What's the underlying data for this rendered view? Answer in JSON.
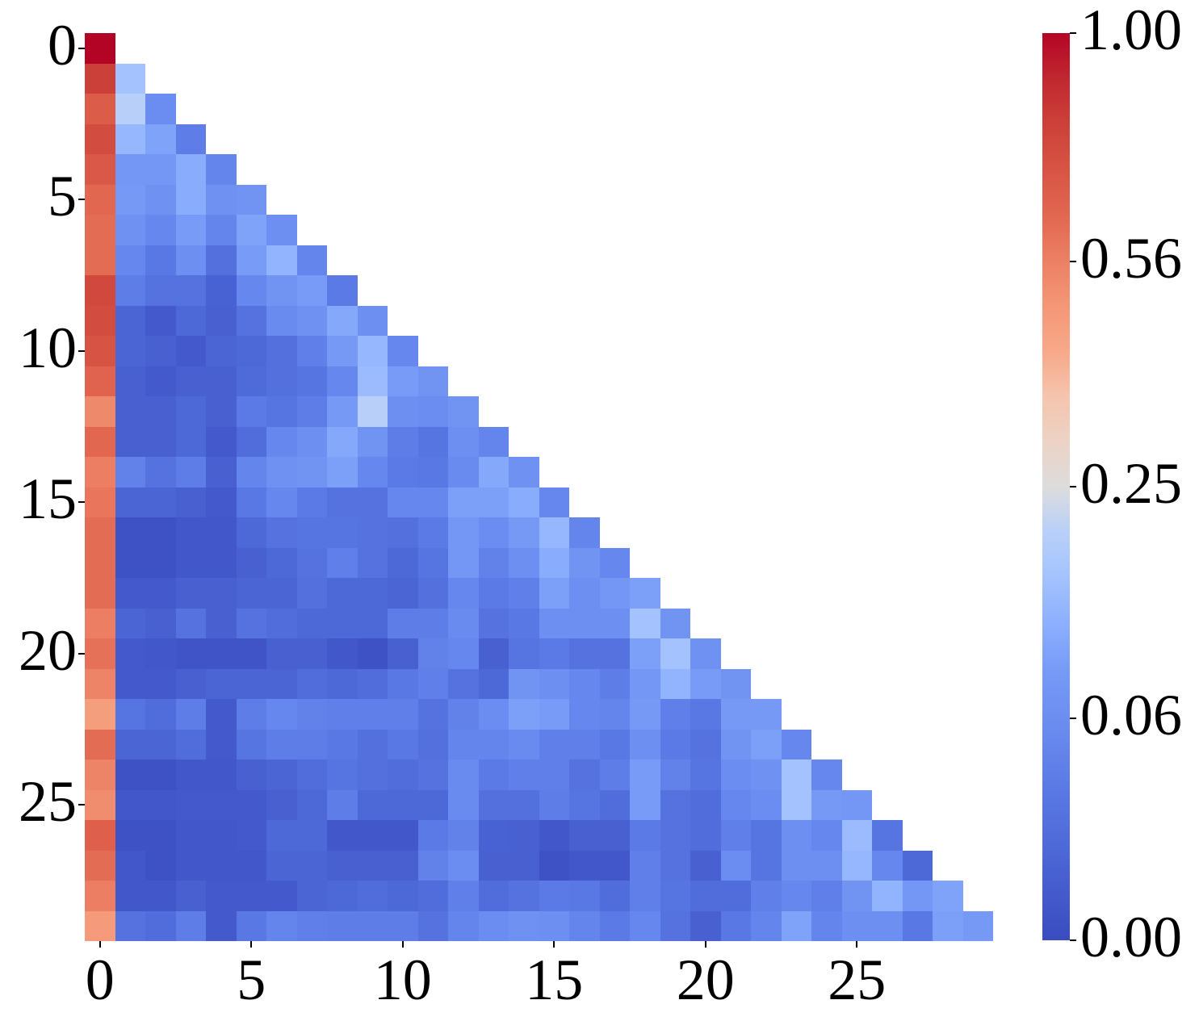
{
  "chart_data": {
    "type": "heatmap",
    "title": "",
    "xlabel": "",
    "ylabel": "",
    "mask": "upper-triangle (lower-triangular matrix, row i has columns 0..i)",
    "colormap": "coolwarm",
    "norm": "power (gamma=2): colormap position = sqrt(value)",
    "n_rows": 30,
    "n_cols": 30,
    "x_ticks": [
      0,
      5,
      10,
      15,
      20,
      25
    ],
    "y_ticks": [
      0,
      5,
      10,
      15,
      20,
      25
    ],
    "x_tick_labels": [
      "0",
      "5",
      "10",
      "15",
      "20",
      "25"
    ],
    "y_tick_labels": [
      "0",
      "5",
      "10",
      "15",
      "20",
      "25"
    ],
    "colorbar": {
      "range": [
        0.0,
        1.0
      ],
      "ticks": [
        1.0,
        0.56,
        0.25,
        0.06,
        0.0
      ],
      "tick_labels": [
        "1.00",
        "0.56",
        "0.25",
        "0.06",
        "0.00"
      ]
    },
    "values_sqrt_position": [
      [
        1.0
      ],
      [
        0.9,
        0.4
      ],
      [
        0.83,
        0.45,
        0.24
      ],
      [
        0.87,
        0.37,
        0.32,
        0.18
      ],
      [
        0.84,
        0.28,
        0.28,
        0.34,
        0.21
      ],
      [
        0.8,
        0.29,
        0.26,
        0.34,
        0.26,
        0.27
      ],
      [
        0.79,
        0.26,
        0.22,
        0.3,
        0.21,
        0.32,
        0.25
      ],
      [
        0.79,
        0.22,
        0.16,
        0.25,
        0.13,
        0.3,
        0.36,
        0.21
      ],
      [
        0.88,
        0.18,
        0.14,
        0.14,
        0.08,
        0.22,
        0.27,
        0.3,
        0.17
      ],
      [
        0.87,
        0.09,
        0.05,
        0.1,
        0.07,
        0.14,
        0.23,
        0.26,
        0.33,
        0.25
      ],
      [
        0.85,
        0.09,
        0.07,
        0.05,
        0.09,
        0.1,
        0.13,
        0.19,
        0.29,
        0.37,
        0.22
      ],
      [
        0.81,
        0.07,
        0.05,
        0.07,
        0.07,
        0.11,
        0.13,
        0.15,
        0.22,
        0.38,
        0.3,
        0.27
      ],
      [
        0.73,
        0.07,
        0.07,
        0.1,
        0.07,
        0.17,
        0.15,
        0.18,
        0.29,
        0.45,
        0.25,
        0.24,
        0.27
      ],
      [
        0.8,
        0.07,
        0.07,
        0.1,
        0.05,
        0.12,
        0.22,
        0.25,
        0.33,
        0.27,
        0.18,
        0.15,
        0.25,
        0.21
      ],
      [
        0.75,
        0.2,
        0.14,
        0.18,
        0.07,
        0.21,
        0.26,
        0.27,
        0.31,
        0.22,
        0.17,
        0.16,
        0.23,
        0.33,
        0.26
      ],
      [
        0.77,
        0.09,
        0.09,
        0.07,
        0.05,
        0.16,
        0.22,
        0.17,
        0.14,
        0.14,
        0.22,
        0.22,
        0.31,
        0.31,
        0.34,
        0.22
      ],
      [
        0.79,
        0.02,
        0.02,
        0.04,
        0.04,
        0.1,
        0.14,
        0.15,
        0.15,
        0.14,
        0.13,
        0.17,
        0.28,
        0.24,
        0.29,
        0.37,
        0.21
      ],
      [
        0.79,
        0.02,
        0.02,
        0.04,
        0.04,
        0.07,
        0.1,
        0.14,
        0.19,
        0.14,
        0.1,
        0.15,
        0.28,
        0.2,
        0.25,
        0.34,
        0.27,
        0.22
      ],
      [
        0.79,
        0.05,
        0.05,
        0.07,
        0.07,
        0.09,
        0.09,
        0.13,
        0.1,
        0.1,
        0.09,
        0.13,
        0.22,
        0.17,
        0.19,
        0.31,
        0.25,
        0.28,
        0.31
      ],
      [
        0.75,
        0.09,
        0.07,
        0.14,
        0.07,
        0.14,
        0.12,
        0.1,
        0.1,
        0.1,
        0.18,
        0.18,
        0.23,
        0.14,
        0.16,
        0.25,
        0.25,
        0.25,
        0.4,
        0.27
      ],
      [
        0.78,
        0.05,
        0.04,
        0.03,
        0.03,
        0.03,
        0.07,
        0.07,
        0.04,
        0.02,
        0.07,
        0.2,
        0.22,
        0.07,
        0.15,
        0.17,
        0.14,
        0.14,
        0.31,
        0.4,
        0.26
      ],
      [
        0.74,
        0.05,
        0.05,
        0.07,
        0.09,
        0.09,
        0.09,
        0.12,
        0.1,
        0.12,
        0.16,
        0.19,
        0.14,
        0.1,
        0.27,
        0.25,
        0.22,
        0.18,
        0.28,
        0.36,
        0.3,
        0.27
      ],
      [
        0.68,
        0.15,
        0.12,
        0.18,
        0.05,
        0.18,
        0.22,
        0.2,
        0.19,
        0.19,
        0.19,
        0.14,
        0.2,
        0.24,
        0.31,
        0.3,
        0.22,
        0.21,
        0.29,
        0.19,
        0.16,
        0.29,
        0.29
      ],
      [
        0.79,
        0.09,
        0.09,
        0.12,
        0.05,
        0.15,
        0.18,
        0.18,
        0.16,
        0.13,
        0.16,
        0.13,
        0.21,
        0.21,
        0.23,
        0.19,
        0.19,
        0.16,
        0.25,
        0.17,
        0.14,
        0.27,
        0.31,
        0.22
      ],
      [
        0.74,
        0.02,
        0.02,
        0.04,
        0.04,
        0.07,
        0.09,
        0.12,
        0.15,
        0.13,
        0.12,
        0.14,
        0.23,
        0.17,
        0.19,
        0.19,
        0.14,
        0.18,
        0.3,
        0.2,
        0.15,
        0.24,
        0.26,
        0.4,
        0.22
      ],
      [
        0.72,
        0.04,
        0.04,
        0.05,
        0.05,
        0.05,
        0.07,
        0.1,
        0.18,
        0.1,
        0.1,
        0.1,
        0.23,
        0.13,
        0.13,
        0.18,
        0.15,
        0.12,
        0.3,
        0.14,
        0.12,
        0.22,
        0.24,
        0.4,
        0.29,
        0.28
      ],
      [
        0.82,
        0.02,
        0.02,
        0.04,
        0.04,
        0.05,
        0.1,
        0.1,
        0.04,
        0.04,
        0.04,
        0.17,
        0.2,
        0.08,
        0.07,
        0.04,
        0.07,
        0.07,
        0.17,
        0.14,
        0.12,
        0.19,
        0.15,
        0.25,
        0.22,
        0.38,
        0.15
      ],
      [
        0.79,
        0.04,
        0.02,
        0.04,
        0.04,
        0.04,
        0.09,
        0.09,
        0.07,
        0.07,
        0.07,
        0.2,
        0.24,
        0.07,
        0.07,
        0.02,
        0.04,
        0.04,
        0.19,
        0.14,
        0.07,
        0.24,
        0.15,
        0.25,
        0.25,
        0.37,
        0.22,
        0.1
      ],
      [
        0.75,
        0.04,
        0.04,
        0.07,
        0.05,
        0.05,
        0.05,
        0.09,
        0.1,
        0.12,
        0.1,
        0.12,
        0.19,
        0.12,
        0.14,
        0.17,
        0.16,
        0.12,
        0.19,
        0.15,
        0.12,
        0.12,
        0.19,
        0.22,
        0.19,
        0.27,
        0.36,
        0.28,
        0.32
      ],
      [
        0.69,
        0.14,
        0.12,
        0.18,
        0.05,
        0.16,
        0.21,
        0.19,
        0.18,
        0.18,
        0.18,
        0.14,
        0.21,
        0.24,
        0.26,
        0.25,
        0.21,
        0.17,
        0.22,
        0.14,
        0.07,
        0.16,
        0.21,
        0.32,
        0.21,
        0.25,
        0.25,
        0.16,
        0.31,
        0.29
      ]
    ],
    "values_note": "actual value = (values_sqrt_position)^2, e.g. cell[0][0]=1.00, cell[1][0]≈0.81, cell[2][1]≈0.20",
    "grid": false,
    "legend": "colorbar right"
  },
  "colors": {
    "cmap_low": "#3b4cc0",
    "cmap_mid": "#dddcdc",
    "cmap_high": "#b40426",
    "background": "#ffffff"
  }
}
